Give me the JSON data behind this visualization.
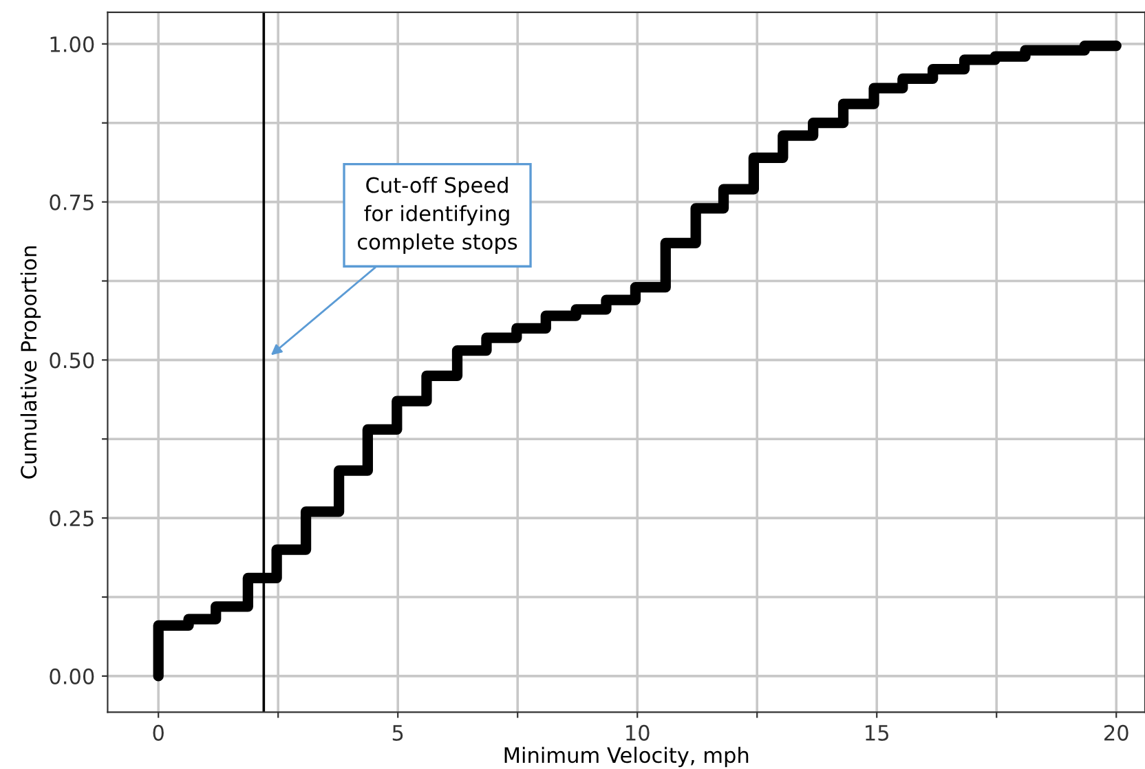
{
  "chart_data": {
    "type": "step",
    "xlabel": "Minimum Velocity, mph",
    "ylabel": "Cumulative Proportion",
    "xlim": [
      -1.06,
      20.6
    ],
    "ylim": [
      -0.057,
      1.05
    ],
    "xticks": [
      0,
      {
        "value": 2.5,
        "label": null
      },
      5,
      {
        "value": 7.5,
        "label": null
      },
      10,
      {
        "value": 12.5,
        "label": null
      },
      15,
      {
        "value": 17.5,
        "label": null
      },
      20
    ],
    "yticks": [
      {
        "value": 0,
        "label": "0.00"
      },
      {
        "value": 0.125,
        "label": null
      },
      {
        "value": 0.25,
        "label": "0.25"
      },
      {
        "value": 0.375,
        "label": null
      },
      {
        "value": 0.5,
        "label": "0.50"
      },
      {
        "value": 0.625,
        "label": null
      },
      {
        "value": 0.75,
        "label": "0.75"
      },
      {
        "value": 0.875,
        "label": null
      },
      {
        "value": 1,
        "label": "1.00"
      }
    ],
    "grid": true,
    "line_style": "solid",
    "marker": "none",
    "series": [
      {
        "color": "#000000",
        "x": [
          0,
          0,
          0.63,
          1.2,
          1.87,
          2.47,
          3.08,
          3.77,
          4.37,
          4.98,
          5.6,
          6.24,
          6.85,
          7.48,
          8.09,
          8.72,
          9.35,
          9.96,
          10.59,
          11.22,
          11.8,
          12.43,
          13.04,
          13.67,
          14.3,
          14.94,
          15.54,
          16.17,
          16.83,
          17.47,
          18.1,
          19.34,
          20
        ],
        "values": [
          0,
          0.08,
          0.09,
          0.11,
          0.155,
          0.2,
          0.26,
          0.325,
          0.39,
          0.435,
          0.475,
          0.515,
          0.535,
          0.55,
          0.57,
          0.58,
          0.595,
          0.615,
          0.685,
          0.74,
          0.77,
          0.82,
          0.855,
          0.875,
          0.905,
          0.93,
          0.945,
          0.96,
          0.975,
          0.98,
          0.99,
          0.997,
          0.997
        ]
      }
    ],
    "ref_lines": [
      {
        "axis": "x",
        "value": 2.2,
        "color": "#000000",
        "line_style": "solid"
      }
    ],
    "annotations": [
      "Cut-off Speed\nfor identifying\ncomplete stops"
    ]
  }
}
